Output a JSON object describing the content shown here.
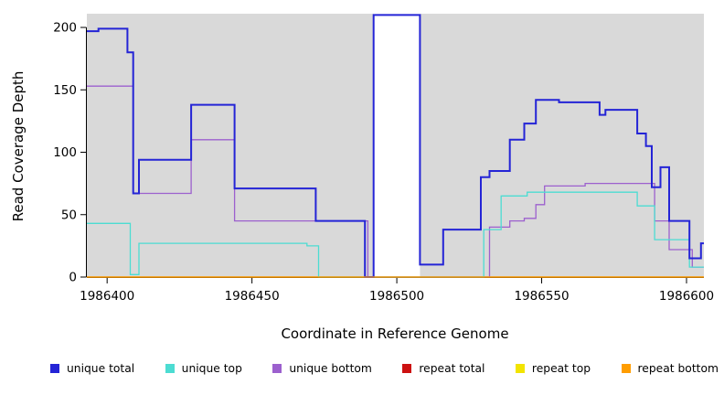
{
  "chart_data": {
    "type": "line",
    "subtype": "step",
    "title": "",
    "xlabel": "Coordinate in Reference Genome",
    "ylabel": "Read Coverage Depth",
    "xlim": [
      1986393,
      1986606
    ],
    "ylim": [
      0,
      200
    ],
    "x_ticks": [
      1986400,
      1986450,
      1986500,
      1986550,
      1986600
    ],
    "y_ticks": [
      0,
      50,
      100,
      150,
      200
    ],
    "grid": false,
    "plot_bg": "#d9d9d9",
    "gap_region": {
      "x0": 1986492,
      "x1": 1986508,
      "color": "#ffffff"
    },
    "legend_position": "bottom",
    "series": [
      {
        "name": "unique total",
        "color": "#2424d6",
        "width": 2,
        "points": [
          [
            1986393,
            197
          ],
          [
            1986397,
            199
          ],
          [
            1986407,
            180
          ],
          [
            1986409,
            67
          ],
          [
            1986411,
            94
          ],
          [
            1986429,
            138
          ],
          [
            1986444,
            71
          ],
          [
            1986472,
            45
          ],
          [
            1986489,
            0
          ],
          [
            1986492,
            210
          ],
          [
            1986508,
            10
          ],
          [
            1986516,
            38
          ],
          [
            1986529,
            80
          ],
          [
            1986532,
            85
          ],
          [
            1986539,
            110
          ],
          [
            1986544,
            123
          ],
          [
            1986548,
            142
          ],
          [
            1986556,
            140
          ],
          [
            1986570,
            130
          ],
          [
            1986572,
            134
          ],
          [
            1986583,
            115
          ],
          [
            1986586,
            105
          ],
          [
            1986588,
            72
          ],
          [
            1986591,
            88
          ],
          [
            1986594,
            45
          ],
          [
            1986601,
            15
          ],
          [
            1986605,
            27
          ]
        ]
      },
      {
        "name": "unique top",
        "color": "#4cdcd2",
        "width": 1.3,
        "points": [
          [
            1986393,
            43
          ],
          [
            1986408,
            2
          ],
          [
            1986411,
            27
          ],
          [
            1986469,
            25
          ],
          [
            1986473,
            0
          ],
          [
            1986530,
            38
          ],
          [
            1986536,
            65
          ],
          [
            1986545,
            68
          ],
          [
            1986583,
            57
          ],
          [
            1986589,
            30
          ],
          [
            1986601,
            8
          ]
        ]
      },
      {
        "name": "unique bottom",
        "color": "#9c60ce",
        "width": 1.3,
        "points": [
          [
            1986393,
            153
          ],
          [
            1986409,
            67
          ],
          [
            1986429,
            110
          ],
          [
            1986444,
            45
          ],
          [
            1986490,
            0
          ],
          [
            1986532,
            40
          ],
          [
            1986539,
            45
          ],
          [
            1986544,
            47
          ],
          [
            1986548,
            58
          ],
          [
            1986551,
            73
          ],
          [
            1986565,
            75
          ],
          [
            1986589,
            45
          ],
          [
            1986594,
            22
          ],
          [
            1986602,
            8
          ]
        ]
      },
      {
        "name": "repeat total",
        "color": "#cc1111",
        "width": 1.3,
        "points": [
          [
            1986393,
            0
          ]
        ]
      },
      {
        "name": "repeat top",
        "color": "#f2e400",
        "width": 1.3,
        "points": [
          [
            1986393,
            0
          ]
        ]
      },
      {
        "name": "repeat bottom",
        "color": "#ff9d00",
        "width": 1.3,
        "points": [
          [
            1986393,
            0
          ]
        ]
      }
    ]
  }
}
